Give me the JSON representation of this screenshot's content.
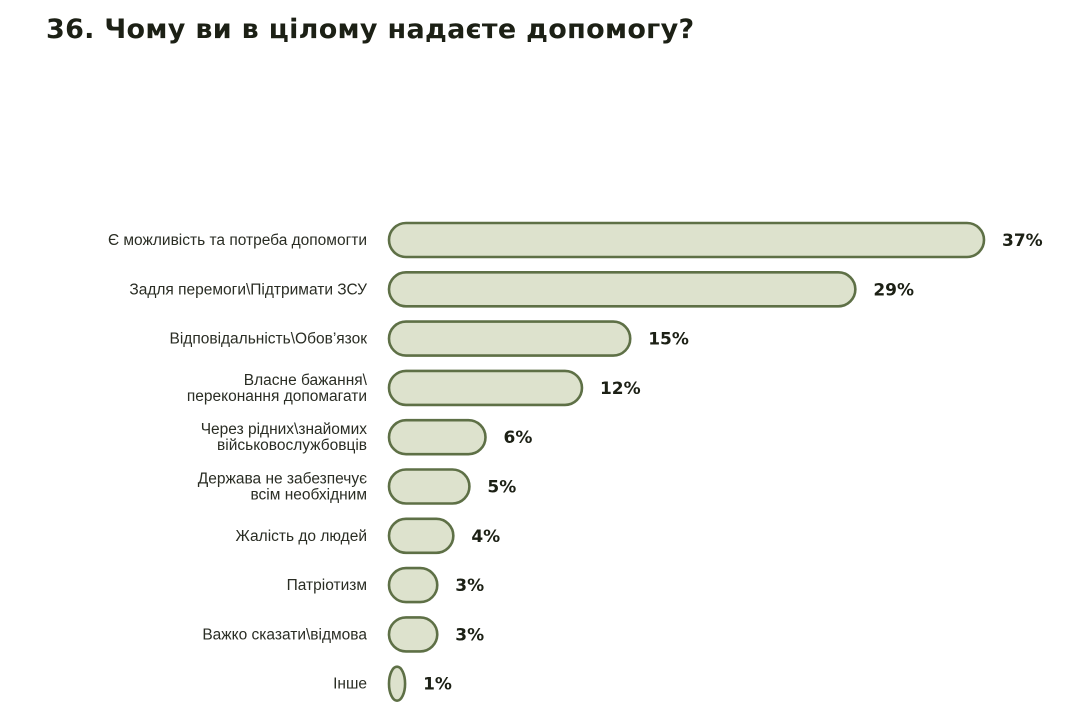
{
  "chart_data": {
    "type": "bar",
    "orientation": "horizontal",
    "title": "36. Чому ви в цілому надаєте допомогу?",
    "categories": [
      [
        "Є можливість та потреба допомогти"
      ],
      [
        "Задля перемоги\\Підтримати ЗСУ"
      ],
      [
        "Відповідальність\\Обов’язок"
      ],
      [
        "Власне бажання\\",
        "переконання допомагати"
      ],
      [
        "Через рідних\\знайомих",
        "військовослужбовців"
      ],
      [
        "Держава не забезпечує",
        "всім необхідним"
      ],
      [
        "Жалість до людей"
      ],
      [
        "Патріотизм"
      ],
      [
        "Важко сказати\\відмова"
      ],
      [
        "Інше"
      ]
    ],
    "values": [
      37,
      29,
      15,
      12,
      6,
      5,
      4,
      3,
      3,
      1
    ],
    "value_labels": [
      "37%",
      "29%",
      "15%",
      "12%",
      "6%",
      "5%",
      "4%",
      "3%",
      "3%",
      "1%"
    ],
    "unit": "%",
    "xlim": [
      0,
      37
    ],
    "grid": false,
    "legend": "none",
    "colors": {
      "bar_fill": "#dde2cd",
      "bar_stroke": "#5e7046"
    }
  }
}
